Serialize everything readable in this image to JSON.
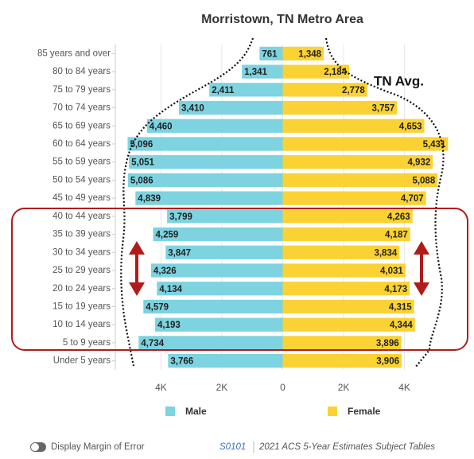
{
  "chart_data": {
    "type": "pyramid",
    "title": "Morristown, TN Metro Area",
    "categories": [
      "85 years and over",
      "80 to 84 years",
      "75 to 79 years",
      "70 to 74 years",
      "65 to 69 years",
      "60 to 64 years",
      "55 to 59 years",
      "50 to 54 years",
      "45 to 49 years",
      "40 to 44 years",
      "35 to 39 years",
      "30 to 34 years",
      "25 to 29 years",
      "20 to 24 years",
      "15 to 19 years",
      "10 to 14 years",
      "5 to 9 years",
      "Under 5 years"
    ],
    "series": [
      {
        "name": "Male",
        "color": "#7dd3e0",
        "side": "left",
        "values": [
          761,
          1341,
          2411,
          3410,
          4460,
          5096,
          5051,
          5086,
          4839,
          3799,
          4259,
          3847,
          4326,
          4134,
          4579,
          4193,
          4734,
          3766
        ],
        "value_labels": [
          "761",
          "1,341",
          "2,411",
          "3,410",
          "4,460",
          "5,096",
          "5,051",
          "5,086",
          "4,839",
          "3,799",
          "4,259",
          "3,847",
          "4,326",
          "4,134",
          "4,579",
          "4,193",
          "4,734",
          "3,766"
        ]
      },
      {
        "name": "Female",
        "color": "#fbd234",
        "side": "right",
        "values": [
          1348,
          2184,
          2778,
          3757,
          4653,
          5431,
          4932,
          5088,
          4707,
          4263,
          4187,
          3834,
          4031,
          4173,
          4315,
          4344,
          3896,
          3906
        ],
        "value_labels": [
          "1,348",
          "2,184",
          "2,778",
          "3,757",
          "4,653",
          "5,431",
          "4,932",
          "5,088",
          "4,707",
          "4,263",
          "4,187",
          "3,834",
          "4,031",
          "4,173",
          "4,315",
          "4,344",
          "3,896",
          "3,906"
        ]
      }
    ],
    "xlim": [
      -5500,
      5500
    ],
    "xticks": [
      {
        "value": -4000,
        "label": "4K"
      },
      {
        "value": -2000,
        "label": "2K"
      },
      0,
      {
        "value": 2000,
        "label": "2K"
      },
      {
        "value": 4000,
        "label": "4K"
      }
    ],
    "grid": true,
    "annotations": [
      "TN Avg."
    ],
    "footer": {
      "toggle": "Display Margin of Error",
      "table_id": "S0101",
      "source": "2021 ACS 5-Year Estimates Subject Tables"
    }
  }
}
